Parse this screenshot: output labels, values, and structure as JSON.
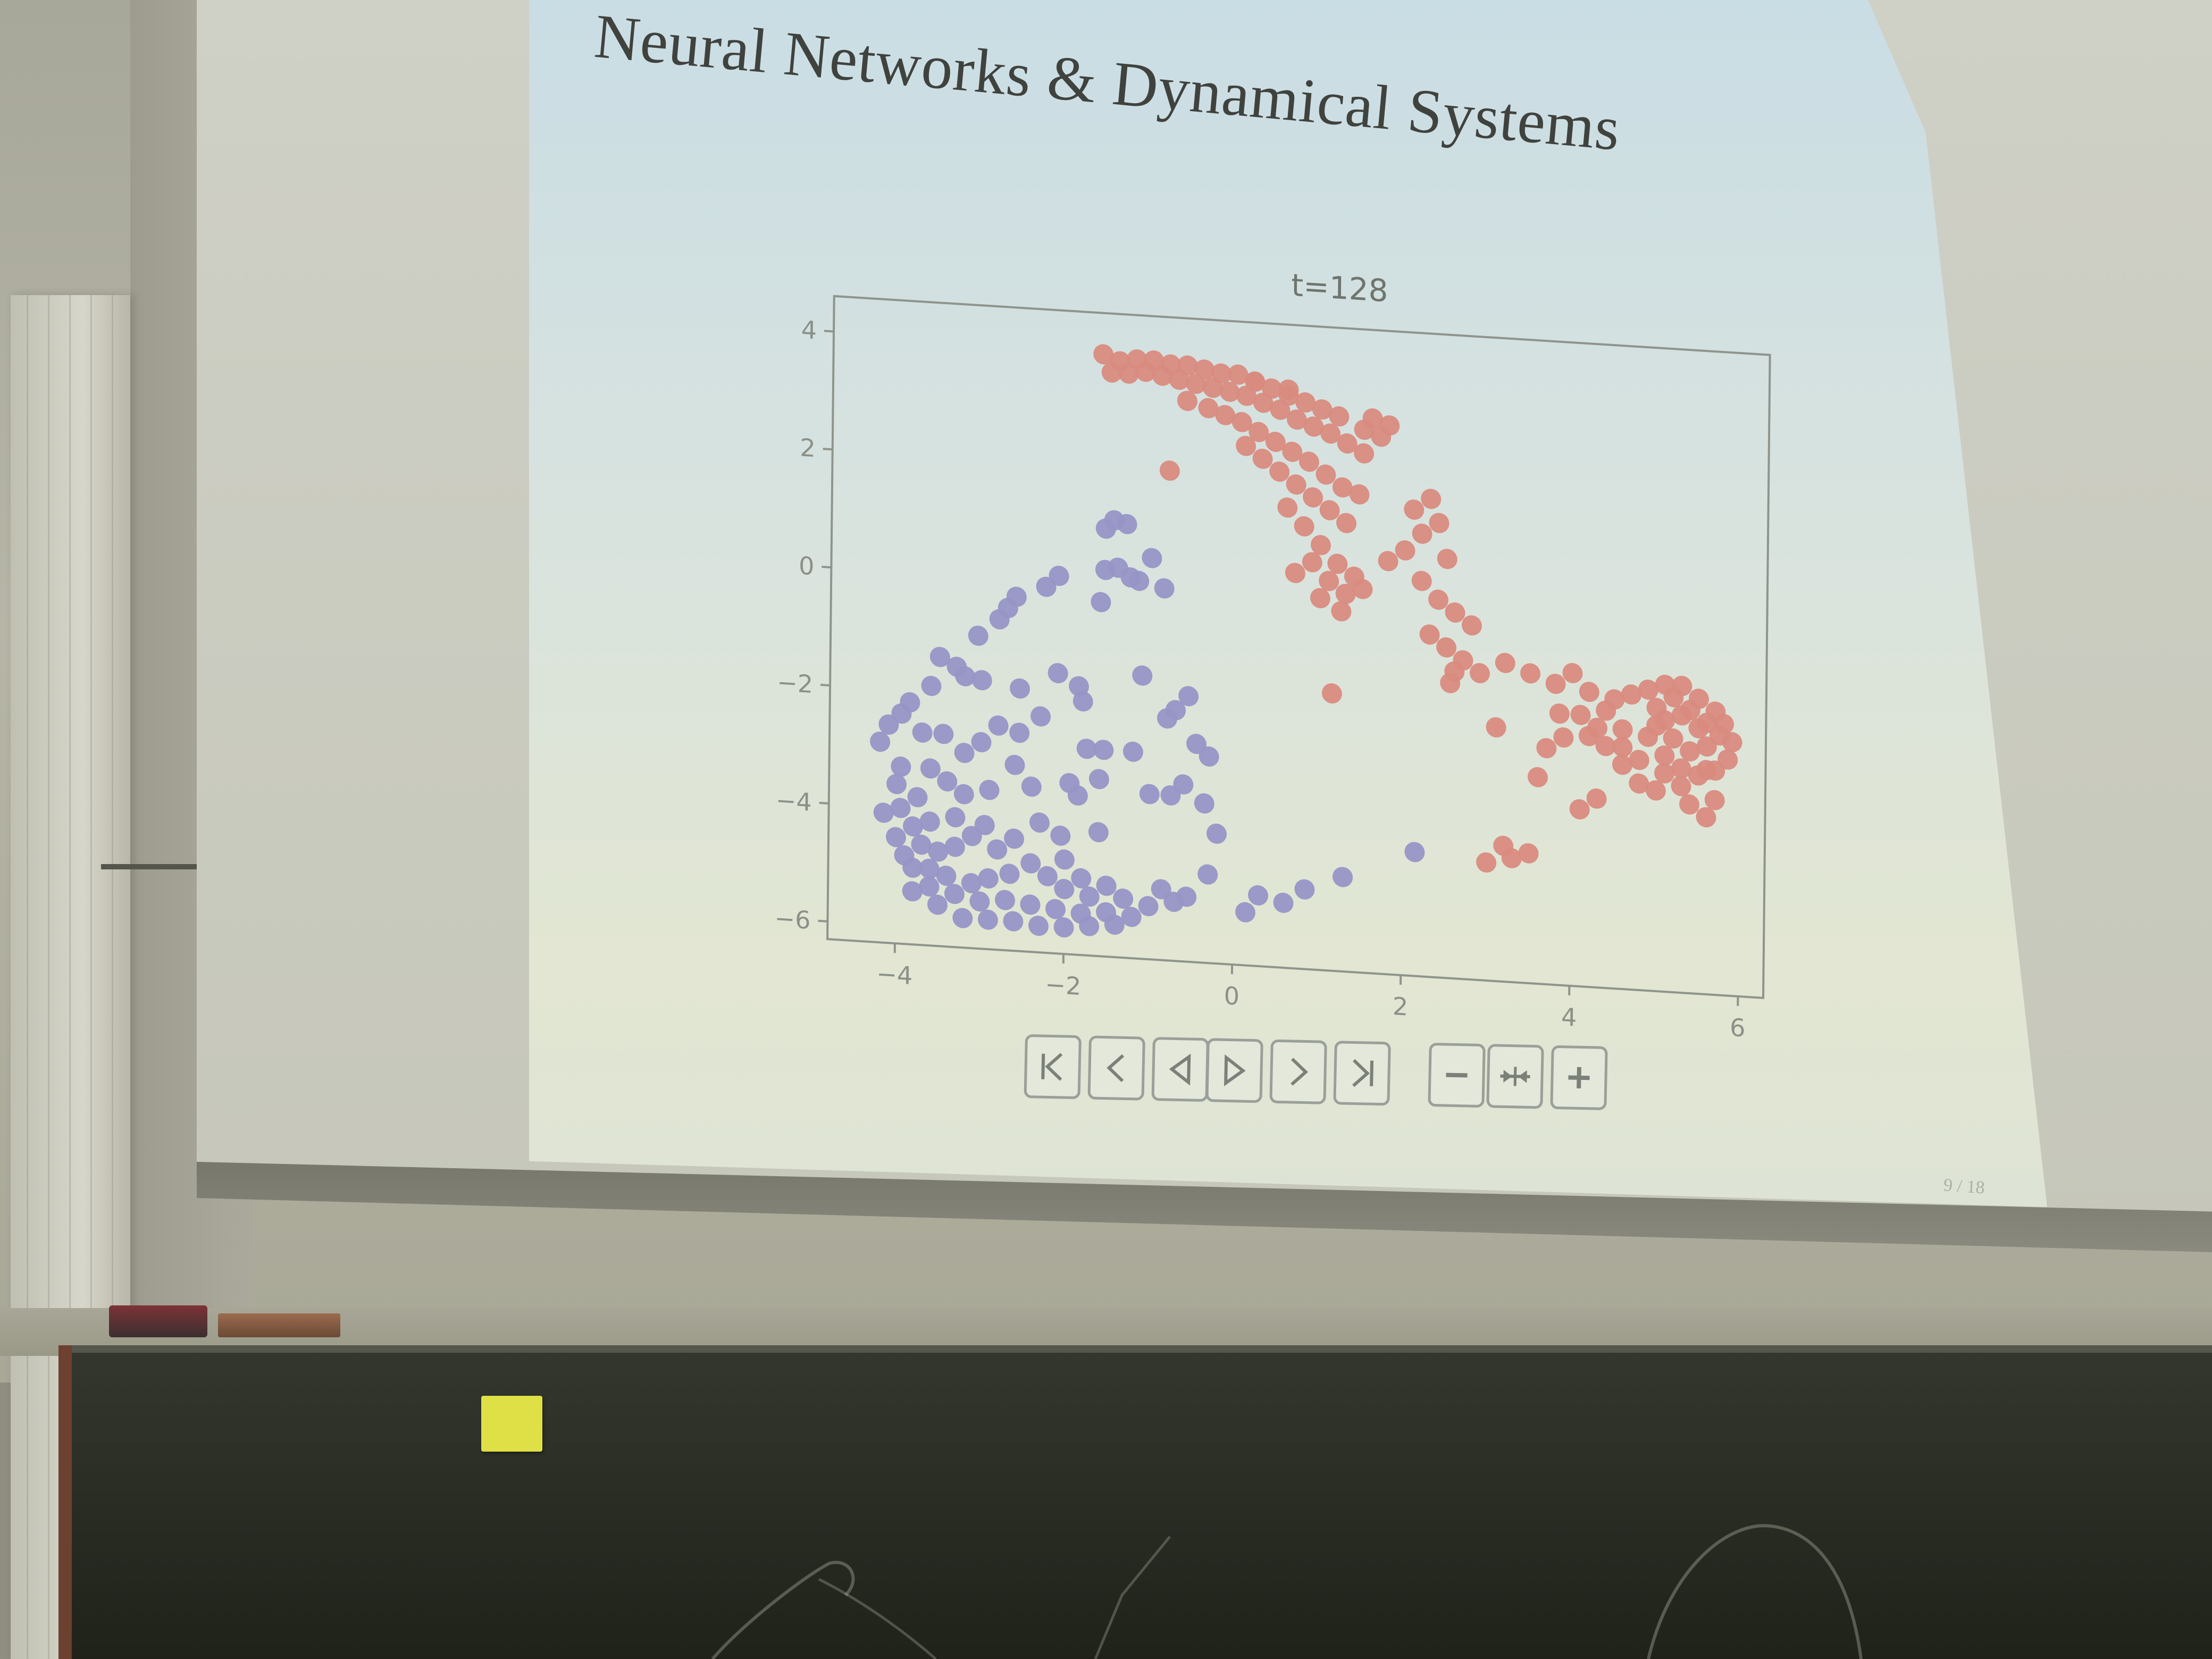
{
  "slide": {
    "title": "Neural Networks & Dynamical Systems",
    "page_indicator": "9 / 18"
  },
  "controls": [
    {
      "name": "first-frame-button",
      "icon": "first-icon"
    },
    {
      "name": "previous-step-button",
      "icon": "step-back-icon"
    },
    {
      "name": "play-reverse-button",
      "icon": "play-reverse-icon"
    },
    {
      "name": "play-button",
      "icon": "play-icon"
    },
    {
      "name": "next-step-button",
      "icon": "step-forward-icon"
    },
    {
      "name": "last-frame-button",
      "icon": "last-icon"
    },
    {
      "name": "slower-button",
      "icon": "minus-icon"
    },
    {
      "name": "reset-speed-button",
      "icon": "reset-speed-icon"
    },
    {
      "name": "faster-button",
      "icon": "plus-icon"
    }
  ],
  "colors": {
    "class_a": "#9795c6",
    "class_b": "#d98b80",
    "axis": "#8f948c"
  },
  "chart_data": {
    "type": "scatter",
    "title": "t=128",
    "xlabel": "",
    "ylabel": "",
    "xlim": [
      -4.8,
      6.3
    ],
    "ylim": [
      -6.3,
      4.6
    ],
    "xticks": [
      "−4",
      "−2",
      "0",
      "2",
      "4",
      "6"
    ],
    "yticks": [
      "4",
      "2",
      "0",
      "−2",
      "−4",
      "−6"
    ],
    "grid": false,
    "legend": "none",
    "series": [
      {
        "color": "#9795c6",
        "points": [
          [
            -1.45,
            1.1
          ],
          [
            -1.3,
            1.05
          ],
          [
            -1.55,
            0.95
          ],
          [
            -1.0,
            0.5
          ],
          [
            -1.4,
            0.3
          ],
          [
            -1.25,
            0.15
          ],
          [
            -1.15,
            0.1
          ],
          [
            -1.55,
            0.25
          ],
          [
            -0.85,
            0.0
          ],
          [
            -1.6,
            -0.3
          ],
          [
            -2.1,
            0.1
          ],
          [
            -2.25,
            -0.1
          ],
          [
            -2.6,
            -0.3
          ],
          [
            -2.7,
            -0.5
          ],
          [
            -2.8,
            -0.7
          ],
          [
            -3.05,
            -1.0
          ],
          [
            -3.5,
            -1.4
          ],
          [
            -3.3,
            -1.55
          ],
          [
            -3.6,
            -1.9
          ],
          [
            -3.2,
            -1.7
          ],
          [
            -3.85,
            -2.2
          ],
          [
            -3.95,
            -2.4
          ],
          [
            -4.1,
            -2.6
          ],
          [
            -4.2,
            -2.9
          ],
          [
            -3.0,
            -1.75
          ],
          [
            -2.55,
            -1.85
          ],
          [
            -2.1,
            -1.55
          ],
          [
            -1.85,
            -1.75
          ],
          [
            -1.8,
            -2.0
          ],
          [
            -1.1,
            -1.5
          ],
          [
            -0.55,
            -1.8
          ],
          [
            -0.8,
            -2.2
          ],
          [
            -0.7,
            -2.05
          ],
          [
            -0.45,
            -2.6
          ],
          [
            -0.3,
            -2.8
          ],
          [
            -1.75,
            -2.8
          ],
          [
            -1.55,
            -2.8
          ],
          [
            -1.2,
            -2.8
          ],
          [
            -2.3,
            -2.3
          ],
          [
            -2.55,
            -2.6
          ],
          [
            -2.8,
            -2.5
          ],
          [
            -3.0,
            -2.8
          ],
          [
            -3.2,
            -3.0
          ],
          [
            -1.95,
            -3.4
          ],
          [
            -1.6,
            -3.3
          ],
          [
            -1.85,
            -3.6
          ],
          [
            -2.6,
            -3.15
          ],
          [
            -0.6,
            -3.3
          ],
          [
            -0.75,
            -3.5
          ],
          [
            -0.35,
            -3.6
          ],
          [
            -1.0,
            -3.5
          ],
          [
            -2.3,
            -4.1
          ],
          [
            -2.05,
            -4.3
          ],
          [
            -1.6,
            -4.2
          ],
          [
            -0.2,
            -4.1
          ],
          [
            -0.3,
            -4.8
          ],
          [
            -0.55,
            -5.2
          ],
          [
            -0.85,
            -5.1
          ],
          [
            0.3,
            -5.1
          ],
          [
            0.15,
            -5.4
          ],
          [
            0.6,
            -5.2
          ],
          [
            0.85,
            -4.95
          ],
          [
            1.3,
            -4.7
          ],
          [
            2.15,
            -4.2
          ],
          [
            -4.0,
            -3.6
          ],
          [
            -3.6,
            -3.3
          ],
          [
            -3.75,
            -3.8
          ],
          [
            -3.4,
            -3.5
          ],
          [
            -3.2,
            -3.7
          ],
          [
            -2.9,
            -3.6
          ],
          [
            -4.15,
            -4.1
          ],
          [
            -3.95,
            -4.0
          ],
          [
            -4.0,
            -4.5
          ],
          [
            -3.8,
            -4.3
          ],
          [
            -3.6,
            -4.2
          ],
          [
            -3.7,
            -4.6
          ],
          [
            -3.5,
            -4.7
          ],
          [
            -3.3,
            -4.6
          ],
          [
            -3.1,
            -4.4
          ],
          [
            -3.3,
            -4.1
          ],
          [
            -2.95,
            -4.2
          ],
          [
            -2.8,
            -4.6
          ],
          [
            -2.6,
            -4.4
          ],
          [
            -3.9,
            -4.8
          ],
          [
            -3.6,
            -5.0
          ],
          [
            -3.4,
            -5.1
          ],
          [
            -3.1,
            -5.2
          ],
          [
            -2.9,
            -5.1
          ],
          [
            -2.65,
            -5.0
          ],
          [
            -2.4,
            -4.8
          ],
          [
            -3.8,
            -5.0
          ],
          [
            -3.6,
            -5.3
          ],
          [
            -3.3,
            -5.4
          ],
          [
            -3.0,
            -5.5
          ],
          [
            -2.7,
            -5.45
          ],
          [
            -2.4,
            -5.5
          ],
          [
            -2.1,
            -5.55
          ],
          [
            -1.8,
            -5.6
          ],
          [
            -1.5,
            -5.55
          ],
          [
            -1.2,
            -5.6
          ],
          [
            -1.0,
            -5.4
          ],
          [
            -1.3,
            -5.3
          ],
          [
            -1.7,
            -5.3
          ],
          [
            -2.0,
            -5.2
          ],
          [
            -2.2,
            -5.0
          ],
          [
            -3.95,
            -3.3
          ],
          [
            -3.7,
            -2.7
          ],
          [
            -3.45,
            -2.7
          ],
          [
            -2.4,
            -3.5
          ],
          [
            -2.0,
            -4.7
          ],
          [
            -1.8,
            -5.0
          ],
          [
            -1.5,
            -5.1
          ],
          [
            -0.7,
            -5.3
          ],
          [
            -3.2,
            -5.8
          ],
          [
            -2.9,
            -5.8
          ],
          [
            -2.6,
            -5.8
          ],
          [
            -2.3,
            -5.85
          ],
          [
            -2.0,
            -5.85
          ],
          [
            -1.7,
            -5.8
          ],
          [
            -1.4,
            -5.75
          ],
          [
            -3.5,
            -5.6
          ],
          [
            -3.8,
            -5.4
          ]
        ]
      },
      {
        "color": "#d98b80",
        "points": [
          [
            -1.6,
            3.9
          ],
          [
            -1.4,
            3.8
          ],
          [
            -1.2,
            3.85
          ],
          [
            -1.0,
            3.85
          ],
          [
            -0.8,
            3.8
          ],
          [
            -0.6,
            3.8
          ],
          [
            -0.4,
            3.75
          ],
          [
            -0.2,
            3.7
          ],
          [
            0.0,
            3.7
          ],
          [
            0.2,
            3.6
          ],
          [
            0.4,
            3.5
          ],
          [
            0.6,
            3.4
          ],
          [
            0.8,
            3.3
          ],
          [
            1.0,
            3.2
          ],
          [
            1.2,
            3.1
          ],
          [
            1.5,
            2.9
          ],
          [
            1.7,
            2.8
          ],
          [
            -1.5,
            3.6
          ],
          [
            -1.3,
            3.6
          ],
          [
            -1.1,
            3.65
          ],
          [
            -0.9,
            3.6
          ],
          [
            -0.7,
            3.55
          ],
          [
            -0.5,
            3.5
          ],
          [
            -0.3,
            3.45
          ],
          [
            -0.1,
            3.4
          ],
          [
            0.1,
            3.35
          ],
          [
            0.3,
            3.25
          ],
          [
            0.5,
            3.15
          ],
          [
            0.7,
            3.0
          ],
          [
            0.9,
            2.9
          ],
          [
            1.1,
            2.8
          ],
          [
            1.3,
            2.65
          ],
          [
            1.5,
            2.5
          ],
          [
            -0.6,
            3.2
          ],
          [
            -0.35,
            3.1
          ],
          [
            -0.15,
            3.0
          ],
          [
            0.05,
            2.9
          ],
          [
            0.25,
            2.75
          ],
          [
            0.45,
            2.6
          ],
          [
            0.65,
            2.45
          ],
          [
            0.85,
            2.3
          ],
          [
            1.05,
            2.1
          ],
          [
            1.25,
            1.9
          ],
          [
            1.45,
            1.8
          ],
          [
            0.1,
            2.5
          ],
          [
            0.3,
            2.3
          ],
          [
            0.5,
            2.1
          ],
          [
            0.7,
            1.9
          ],
          [
            0.9,
            1.7
          ],
          [
            1.1,
            1.5
          ],
          [
            1.3,
            1.3
          ],
          [
            0.6,
            1.5
          ],
          [
            0.8,
            1.2
          ],
          [
            1.0,
            0.9
          ],
          [
            1.2,
            0.6
          ],
          [
            1.4,
            0.4
          ],
          [
            0.9,
            0.6
          ],
          [
            1.1,
            0.3
          ],
          [
            1.3,
            0.1
          ],
          [
            1.0,
            0.0
          ],
          [
            1.25,
            -0.2
          ],
          [
            1.5,
            0.2
          ],
          [
            1.8,
            0.7
          ],
          [
            2.0,
            0.9
          ],
          [
            2.2,
            1.2
          ],
          [
            2.1,
            1.6
          ],
          [
            2.3,
            1.8
          ],
          [
            2.4,
            1.4
          ],
          [
            2.5,
            0.8
          ],
          [
            2.2,
            0.4
          ],
          [
            2.4,
            0.1
          ],
          [
            2.6,
            -0.1
          ],
          [
            2.8,
            -0.3
          ],
          [
            2.3,
            -0.5
          ],
          [
            2.5,
            -0.7
          ],
          [
            2.7,
            -0.9
          ],
          [
            2.9,
            -1.1
          ],
          [
            2.55,
            -1.3
          ],
          [
            3.2,
            -0.9
          ],
          [
            3.5,
            -1.05
          ],
          [
            3.8,
            -1.2
          ],
          [
            4.0,
            -1.0
          ],
          [
            4.2,
            -1.3
          ],
          [
            4.5,
            -1.4
          ],
          [
            4.7,
            -1.3
          ],
          [
            4.9,
            -1.2
          ],
          [
            5.1,
            -1.1
          ],
          [
            5.3,
            -1.1
          ],
          [
            5.5,
            -1.3
          ],
          [
            5.7,
            -1.5
          ],
          [
            5.8,
            -1.7
          ],
          [
            5.9,
            -2.0
          ],
          [
            5.85,
            -2.3
          ],
          [
            5.7,
            -2.5
          ],
          [
            5.5,
            -2.6
          ],
          [
            5.3,
            -2.5
          ],
          [
            5.1,
            -2.3
          ],
          [
            4.9,
            -2.0
          ],
          [
            5.1,
            -1.7
          ],
          [
            5.3,
            -1.6
          ],
          [
            5.5,
            -1.8
          ],
          [
            5.6,
            -2.1
          ],
          [
            5.4,
            -2.2
          ],
          [
            5.2,
            -2.0
          ],
          [
            5.0,
            -1.8
          ],
          [
            5.7,
            -3.0
          ],
          [
            5.6,
            -3.3
          ],
          [
            5.4,
            -3.1
          ],
          [
            5.0,
            -2.9
          ],
          [
            4.8,
            -2.8
          ],
          [
            4.6,
            -2.5
          ],
          [
            4.4,
            -2.2
          ],
          [
            4.2,
            -2.05
          ],
          [
            3.9,
            -2.1
          ],
          [
            3.7,
            -2.3
          ],
          [
            4.3,
            -3.1
          ],
          [
            4.1,
            -3.3
          ],
          [
            3.5,
            -4.1
          ],
          [
            3.3,
            -4.2
          ],
          [
            3.2,
            -4.0
          ],
          [
            3.0,
            -4.3
          ],
          [
            3.85,
            -1.7
          ],
          [
            4.1,
            -1.7
          ],
          [
            4.3,
            -1.9
          ],
          [
            4.6,
            -1.9
          ],
          [
            5.0,
            -1.5
          ],
          [
            5.2,
            -1.3
          ],
          [
            5.4,
            -1.5
          ],
          [
            5.6,
            -1.7
          ],
          [
            5.75,
            -1.9
          ],
          [
            5.6,
            -2.5
          ],
          [
            5.3,
            -2.8
          ],
          [
            5.1,
            -2.6
          ],
          [
            4.8,
            -2.4
          ],
          [
            4.6,
            -2.2
          ],
          [
            4.4,
            -1.6
          ],
          [
            -0.8,
            2.0
          ],
          [
            0.7,
            0.4
          ],
          [
            1.15,
            -1.6
          ],
          [
            1.6,
            3.1
          ],
          [
            1.8,
            3.0
          ],
          [
            0.2,
            3.6
          ],
          [
            0.6,
            3.5
          ],
          [
            2.6,
            -1.1
          ],
          [
            3.1,
            -2.0
          ],
          [
            3.6,
            -2.8
          ]
        ]
      }
    ]
  }
}
